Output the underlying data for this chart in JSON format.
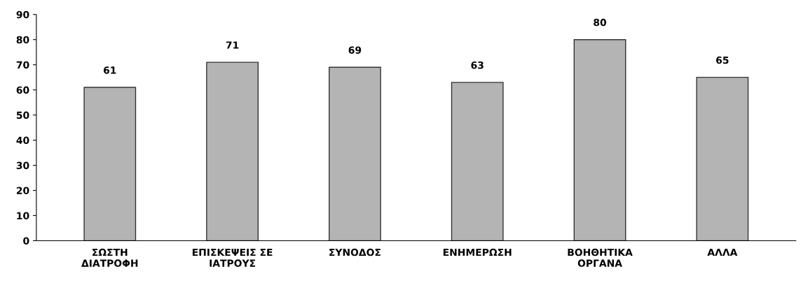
{
  "chart_data": {
    "type": "bar",
    "categories": [
      "ΣΩΣΤΗ\nΔΙΑΤΡΟΦΗ",
      "ΕΠΙΣΚΕΨΕΙΣ ΣΕ\nΙΑΤΡΟΥΣ",
      "ΣΥΝΟΔΟΣ",
      "ΕΝΗΜΕΡΩΣΗ",
      "ΒΟΗΘΗΤΙΚΑ\nΟΡΓΑΝΑ",
      "ΑΛΛΑ"
    ],
    "values": [
      61,
      71,
      69,
      63,
      80,
      65
    ],
    "color": "#b4b4b4",
    "ylim": [
      0,
      90
    ],
    "yticks": [
      0,
      10,
      20,
      30,
      40,
      50,
      60,
      70,
      80,
      90
    ],
    "data_labels": true,
    "grid": false
  }
}
